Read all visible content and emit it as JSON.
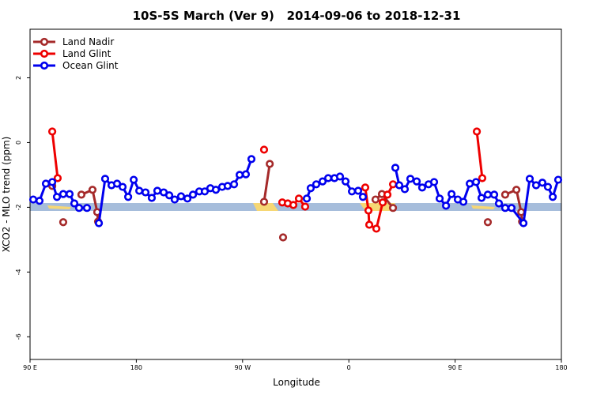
{
  "chart_data": {
    "type": "line",
    "title": "10S-5S March (Ver 9)   2014-09-06 to 2018-12-31",
    "xlabel": "Longitude",
    "ylabel": "XCO2 - MLO trend (ppm)",
    "xlim": [
      90,
      540
    ],
    "xticks": [
      {
        "value": 90,
        "label": "90 E"
      },
      {
        "value": 180,
        "label": "180"
      },
      {
        "value": 270,
        "label": "90 W"
      },
      {
        "value": 360,
        "label": "0"
      },
      {
        "value": 450,
        "label": "90 E"
      },
      {
        "value": 540,
        "label": "180"
      }
    ],
    "ylim": [
      -6.7,
      3.5
    ],
    "yticks": [
      2,
      0,
      -2,
      -4,
      -6
    ],
    "legend": "top-left",
    "series": [
      {
        "name": "Land Nadir",
        "color": "#a52a2a",
        "x": [
          108.8,
          null,
          118.1,
          null,
          133.5,
          142.9,
          146.9,
          147.6,
          null,
          288.2,
          293,
          null,
          304.3,
          null,
          382.6,
          388,
          397.4,
          null,
          477.7,
          null,
          492.4,
          501.9,
          506,
          506.7
        ],
        "values": [
          -1.34,
          null,
          -2.46,
          null,
          -1.61,
          -1.46,
          -2.15,
          -2.44,
          null,
          -1.83,
          -0.66,
          null,
          -2.93,
          null,
          -1.76,
          -1.59,
          -2.02,
          null,
          -2.46,
          null,
          -1.61,
          -1.46,
          -2.15,
          -2.44
        ]
      },
      {
        "name": "Land Glint",
        "color": "#ee0000",
        "x": [
          108.8,
          113.4,
          null,
          288.2,
          null,
          303.6,
          308.3,
          313,
          317.7,
          323,
          null,
          373.9,
          376.6,
          377.3,
          383.3,
          388.7,
          392.7,
          397.4,
          null,
          468.4,
          473
        ],
        "values": [
          0.34,
          -1.1,
          null,
          -0.22,
          null,
          -1.85,
          -1.88,
          -1.93,
          -1.73,
          -1.98,
          null,
          -1.39,
          -2.1,
          -2.54,
          -2.66,
          -1.85,
          -1.61,
          -1.29,
          null,
          0.34,
          -1.1
        ]
      },
      {
        "name": "Ocean Glint",
        "color": "#0000ee",
        "x": [
          92.7,
          98,
          103.4,
          108.8,
          112.8,
          118.1,
          123.5,
          127.5,
          131.5,
          138.2,
          null,
          148.3,
          153.6,
          159,
          163.7,
          168.4,
          173.1,
          177.8,
          182.5,
          187.8,
          193.1,
          197.8,
          203.2,
          207.9,
          212.5,
          217.9,
          223.3,
          228,
          233.3,
          238,
          242.7,
          247.4,
          252.7,
          257.4,
          262.8,
          267.5,
          272.8,
          277.5,
          null,
          324.4,
          327.7,
          332.4,
          337.8,
          342.5,
          347.8,
          352.5,
          357.2,
          362.6,
          367.9,
          371.9,
          null,
          399.4,
          402.7,
          407.4,
          412.1,
          417.5,
          422.1,
          427.5,
          432.2,
          436.9,
          442.3,
          447,
          452.3,
          457,
          462.4,
          467.7,
          472.4,
          477.7,
          483.1,
          487.1,
          492.4,
          497.8,
          507.9,
          513.2,
          518.6,
          523.9,
          528.6,
          532.7,
          537.3
        ],
        "values": [
          -1.76,
          -1.8,
          -1.27,
          -1.22,
          -1.68,
          -1.59,
          -1.59,
          -1.88,
          -2.02,
          -2.02,
          null,
          -2.49,
          -1.12,
          -1.32,
          -1.27,
          -1.37,
          -1.68,
          -1.15,
          -1.49,
          -1.54,
          -1.71,
          -1.49,
          -1.54,
          -1.63,
          -1.76,
          -1.66,
          -1.73,
          -1.61,
          -1.51,
          -1.51,
          -1.41,
          -1.46,
          -1.37,
          -1.34,
          -1.29,
          -1,
          -0.98,
          -0.51,
          null,
          -1.73,
          -1.41,
          -1.29,
          -1.2,
          -1.1,
          -1.1,
          -1.05,
          -1.2,
          -1.51,
          -1.49,
          -1.68,
          null,
          -0.78,
          -1.32,
          -1.44,
          -1.12,
          -1.2,
          -1.39,
          -1.29,
          -1.22,
          -1.73,
          -1.95,
          -1.59,
          -1.76,
          -1.83,
          -1.27,
          -1.22,
          -1.71,
          -1.61,
          -1.61,
          -1.88,
          -2.02,
          -2.02,
          -2.49,
          -1.12,
          -1.32,
          -1.24,
          -1.37,
          -1.68,
          -1.15
        ]
      }
    ]
  }
}
